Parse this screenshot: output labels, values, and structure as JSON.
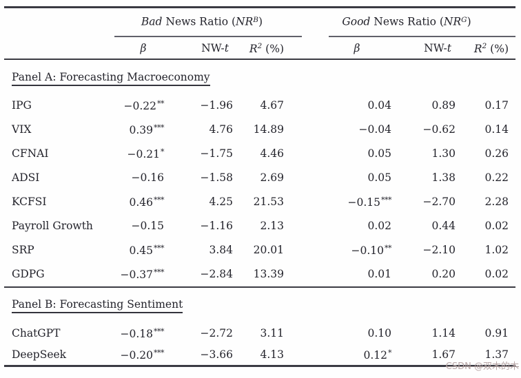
{
  "table": {
    "groups": [
      {
        "italic": "Bad",
        "rest": " News Ratio (",
        "sym": "NR",
        "sup": "B",
        "close": ")"
      },
      {
        "italic": "Good",
        "rest": " News Ratio (",
        "sym": "NR",
        "sup": "G",
        "close": ")"
      }
    ],
    "subheaders": {
      "beta": "β",
      "nw_prefix": "NW-",
      "nw_t": "t",
      "r_sym": "R",
      "r_sup": "2",
      "r_rest": " (%)"
    },
    "panels": [
      {
        "title": "Panel A: Forecasting Macroeconomy",
        "rows": [
          {
            "label": "IPG",
            "cells": [
              {
                "v": "−0.22",
                "s": "**"
              },
              {
                "v": "−1.96"
              },
              {
                "v": "4.67"
              },
              {
                "v": "0.04"
              },
              {
                "v": "0.89"
              },
              {
                "v": "0.17"
              }
            ]
          },
          {
            "label": "VIX",
            "cells": [
              {
                "v": "0.39",
                "s": "***"
              },
              {
                "v": "4.76"
              },
              {
                "v": "14.89"
              },
              {
                "v": "−0.04"
              },
              {
                "v": "−0.62"
              },
              {
                "v": "0.14"
              }
            ]
          },
          {
            "label": "CFNAI",
            "cells": [
              {
                "v": "−0.21",
                "s": "*"
              },
              {
                "v": "−1.75"
              },
              {
                "v": "4.46"
              },
              {
                "v": "0.05"
              },
              {
                "v": "1.30"
              },
              {
                "v": "0.26"
              }
            ]
          },
          {
            "label": "ADSI",
            "cells": [
              {
                "v": "−0.16"
              },
              {
                "v": "−1.58"
              },
              {
                "v": "2.69"
              },
              {
                "v": "0.05"
              },
              {
                "v": "1.38"
              },
              {
                "v": "0.22"
              }
            ]
          },
          {
            "label": "KCFSI",
            "cells": [
              {
                "v": "0.46",
                "s": "***"
              },
              {
                "v": "4.25"
              },
              {
                "v": "21.53"
              },
              {
                "v": "−0.15",
                "s": "***"
              },
              {
                "v": "−2.70"
              },
              {
                "v": "2.28"
              }
            ]
          },
          {
            "label": "Payroll Growth",
            "cells": [
              {
                "v": "−0.15"
              },
              {
                "v": "−1.16"
              },
              {
                "v": "2.13"
              },
              {
                "v": "0.02"
              },
              {
                "v": "0.44"
              },
              {
                "v": "0.02"
              }
            ]
          },
          {
            "label": "SRP",
            "cells": [
              {
                "v": "0.45",
                "s": "***"
              },
              {
                "v": "3.84"
              },
              {
                "v": "20.01"
              },
              {
                "v": "−0.10",
                "s": "**"
              },
              {
                "v": "−2.10"
              },
              {
                "v": "1.02"
              }
            ]
          },
          {
            "label": "GDPG",
            "cells": [
              {
                "v": "−0.37",
                "s": "***"
              },
              {
                "v": "−2.84"
              },
              {
                "v": "13.39"
              },
              {
                "v": "0.01"
              },
              {
                "v": "0.20"
              },
              {
                "v": "0.02"
              }
            ]
          }
        ]
      },
      {
        "title": "Panel B: Forecasting Sentiment",
        "rows": [
          {
            "label": "ChatGPT",
            "cells": [
              {
                "v": "−0.18",
                "s": "***"
              },
              {
                "v": "−2.72"
              },
              {
                "v": "3.11"
              },
              {
                "v": "0.10"
              },
              {
                "v": "1.14"
              },
              {
                "v": "0.91"
              }
            ]
          },
          {
            "label": "DeepSeek",
            "cells": [
              {
                "v": "−0.20",
                "s": "***"
              },
              {
                "v": "−3.66"
              },
              {
                "v": "4.13"
              },
              {
                "v": "0.12",
                "s": "*"
              },
              {
                "v": "1.67"
              },
              {
                "v": "1.37"
              }
            ]
          }
        ]
      }
    ]
  },
  "watermark": "CSDN @双木的木"
}
